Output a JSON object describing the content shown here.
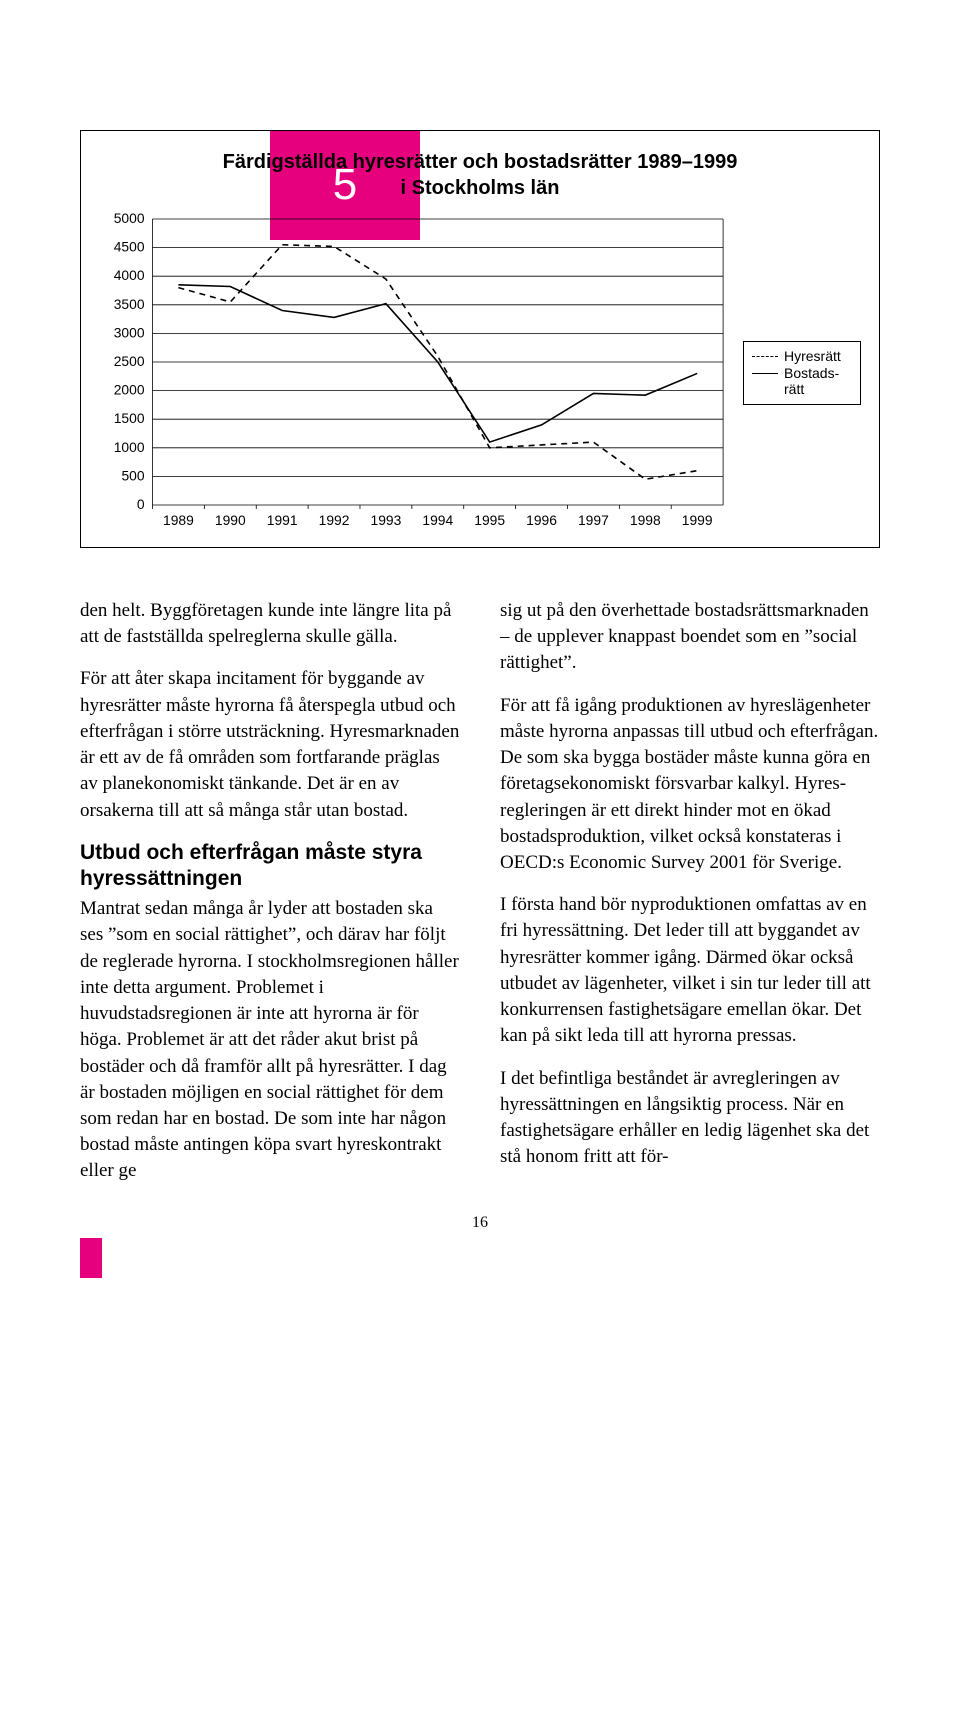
{
  "page_number_top": "5",
  "chart": {
    "type": "line",
    "title": "Färdigställda hyresrätter och bostadsrätter 1989–1999\ni Stockholms län",
    "title_fontsize": 20,
    "x_categories": [
      "1989",
      "1990",
      "1991",
      "1992",
      "1993",
      "1994",
      "1995",
      "1996",
      "1997",
      "1998",
      "1999"
    ],
    "ylim": [
      0,
      5000
    ],
    "ytick_step": 500,
    "y_ticks": [
      "0",
      "500",
      "1000",
      "1500",
      "2000",
      "2500",
      "3000",
      "3500",
      "4000",
      "4500",
      "5000"
    ],
    "gridline_color": "#000000",
    "gridline_width": 0.8,
    "axis_font_family": "Arial",
    "axis_fontsize": 14,
    "background_color": "#ffffff",
    "series": [
      {
        "name": "Hyresrätt",
        "style": "dashed",
        "color": "#000000",
        "width": 1.6,
        "values": [
          3800,
          3550,
          4550,
          4520,
          3950,
          2600,
          1000,
          1050,
          1100,
          450,
          600
        ]
      },
      {
        "name": "Bostads-\nrätt",
        "style": "solid",
        "color": "#000000",
        "width": 1.6,
        "values": [
          3850,
          3820,
          3400,
          3280,
          3520,
          2500,
          1100,
          1400,
          1950,
          1920,
          2300
        ]
      }
    ],
    "legend": {
      "items": [
        {
          "swatch_style": "dashed",
          "color": "#000000",
          "label": "Hyresrätt"
        },
        {
          "swatch_style": "solid",
          "color": "#000000",
          "label": "Bostads-\nrätt"
        }
      ],
      "fontsize": 14,
      "border_color": "#000000"
    }
  },
  "body": {
    "p1": "den helt. Byggföretagen kunde inte längre lita på att de fastställda spelreglerna skulle gälla.",
    "p2": "För att åter skapa incitament för byggande av hyresrätter måste hyrorna få återspegla utbud och efterfrågan i större utsträckning. Hyresmarknaden är ett av de få områden som fortfarande präglas av planekonomiskt tänkande. Det är en av orsakerna till att så många står utan bostad.",
    "h1": "Utbud och efterfrågan måste styra hyressättningen",
    "p3": "Mantrat sedan många år lyder att bostaden ska ses ”som en social rättighet”, och därav har följt de reglerade hyrorna. I stockholms­regionen håller inte detta argument. Proble­met i huvudstadsregionen är inte att hyrorna är för höga. Problemet är att det råder akut brist på bostäder och då framför allt på hyresrätter. I dag är bostaden möjligen en social rättighet för dem som redan har en bostad. De som inte har någon bostad måste antingen köpa svart hyreskontrakt eller ge",
    "p4": "sig ut på den överhettade bostadsrättsmark­naden – de upplever knappast boendet som en ”social rättighet”.",
    "p5": "För att få igång produktionen av hyres­lägenheter måste hyrorna anpassas till utbud och efterfrågan. De som ska bygga bostäder måste kunna göra en företags­ekonomiskt försvarbar kalkyl. Hyres­regleringen är ett direkt hinder mot en ökad bostadsproduktion, vilket också konstateras i OECD:s Economic Survey 2001 för Sverige.",
    "p6": "I första hand bör nyproduktionen omfattas av en fri hyressättning. Det leder till att byggandet av hyresrätter kommer igång. Därmed ökar också utbudet av lägenheter, vilket i sin tur leder till att konkurrensen fastighetsägare emellan ökar. Det kan på sikt leda till att hyrorna pressas.",
    "p7": "I det befintliga beståndet är avregleringen av hyressättningen en långsiktig process. När en fastighetsägare erhåller en ledig lägenhet ska det stå honom fritt att för-"
  },
  "footer_page_number": "16",
  "accent_color": "#e6007e"
}
